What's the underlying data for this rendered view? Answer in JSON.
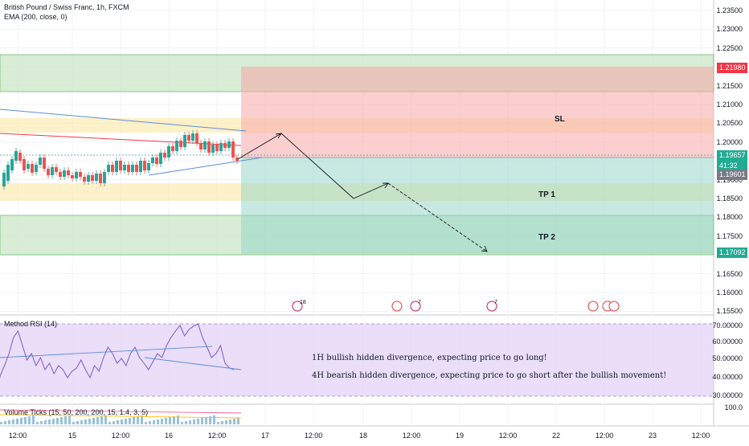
{
  "chart_data": [
    {
      "type": "candlestick",
      "legend_title": "British Pound / Swiss Franc, 1h, FXCM",
      "indicator_label": "EMA (200, close, 0)",
      "y_ticks": [
        "1.23500",
        "1.23000",
        "1.22500",
        "1.22000",
        "1.21500",
        "1.21000",
        "1.20500",
        "1.20000",
        "1.19500",
        "1.19000",
        "1.18500",
        "1.18000",
        "1.17500",
        "1.17000",
        "1.16500",
        "1.16000",
        "1.15500"
      ],
      "price_tags": [
        {
          "label": "1.21980",
          "color": "#f23645"
        },
        {
          "label": "1.19657",
          "color": "#22ab94"
        },
        {
          "label": "41:32",
          "color": "#22ab94"
        },
        {
          "label": "1.19601",
          "color": "#787b86"
        },
        {
          "label": "1.17092",
          "color": "#22ab94"
        }
      ],
      "zones": [
        {
          "label": "SL",
          "color": "stop"
        },
        {
          "label": "TP 1",
          "color": "target"
        },
        {
          "label": "TP 2",
          "color": "target"
        }
      ],
      "event_badges": [
        "18",
        "7",
        "7"
      ]
    },
    {
      "type": "line",
      "indicator_label": "Method RSI (14)",
      "y_ticks": [
        "70.00000",
        "60.00000",
        "50.00000",
        "40.00000",
        "30.00000"
      ],
      "annotations": [
        "1H bullish hidden divergence, expecting price to go long!",
        "4H bearish hidden divergence, expecting price to go short after the bullish movement!"
      ]
    },
    {
      "type": "bar",
      "indicator_label": "Volume Ticks (15, 50, 200, 200, 15, 1.4, 3, 5)",
      "y_ticks": [
        "100.0"
      ]
    }
  ],
  "time_axis": [
    "12:00",
    "15",
    "12:00",
    "16",
    "12:00",
    "17",
    "12:00",
    "18",
    "12:00",
    "19",
    "12:00",
    "22",
    "12:00",
    "23",
    "12:00"
  ]
}
